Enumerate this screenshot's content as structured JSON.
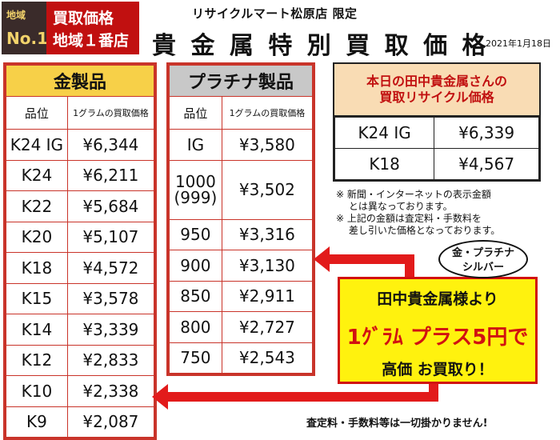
{
  "logo": {
    "small": "地域",
    "no1": "No.1",
    "line1": "買取価格",
    "line2": "地域１番店"
  },
  "header": {
    "store": "リサイクルマート松原店 限定",
    "title": "貴 金 属 特 別 買 取 価 格",
    "date": "2021年1月18日"
  },
  "gold": {
    "title": "金製品",
    "col_grade": "品位",
    "col_price": "1グラムの買取価格",
    "rows": [
      {
        "grade": "K24 IG",
        "price": "¥6,344"
      },
      {
        "grade": "K24",
        "price": "¥6,211"
      },
      {
        "grade": "K22",
        "price": "¥5,684"
      },
      {
        "grade": "K20",
        "price": "¥5,107"
      },
      {
        "grade": "K18",
        "price": "¥4,572"
      },
      {
        "grade": "K15",
        "price": "¥3,578"
      },
      {
        "grade": "K14",
        "price": "¥3,339"
      },
      {
        "grade": "K12",
        "price": "¥2,833"
      },
      {
        "grade": "K10",
        "price": "¥2,338"
      },
      {
        "grade": "K9",
        "price": "¥2,087"
      }
    ]
  },
  "platinum": {
    "title": "プラチナ製品",
    "col_grade": "品位",
    "col_price": "1グラムの買取価格",
    "rows": [
      {
        "grade": "IG",
        "price": "¥3,580"
      },
      {
        "grade": "1000\n(999)",
        "price": "¥3,502"
      },
      {
        "grade": "950",
        "price": "¥3,316"
      },
      {
        "grade": "900",
        "price": "¥3,130"
      },
      {
        "grade": "850",
        "price": "¥2,911"
      },
      {
        "grade": "800",
        "price": "¥2,727"
      },
      {
        "grade": "750",
        "price": "¥2,543"
      }
    ]
  },
  "today": {
    "title_line1": "本日の田中貴金属さんの",
    "title_line2": "買取リサイクル価格",
    "rows": [
      {
        "grade": "K24 IG",
        "price": "¥6,339"
      },
      {
        "grade": "K18",
        "price": "¥4,567"
      }
    ]
  },
  "notes": [
    "※ 新聞・インターネットの表示金額",
    "　 とは異なっております。",
    "※ 上記の金額は査定料・手数料を",
    "　 差し引いた価格となっております。"
  ],
  "bubble": {
    "line1": "金・プラチナ",
    "line2": "シルバー"
  },
  "promo": {
    "line1": "田中貴金属様より",
    "line2": "1ｸﾞﾗﾑ プラス5円で",
    "line3": "高価 お買取り！"
  },
  "footer": "査定料・手数料等は一切掛かりません!",
  "colors": {
    "accent_red": "#d11111",
    "gold_header": "#f7d048",
    "platinum_header": "#c8c8c8",
    "promo_yellow": "#fff20e"
  }
}
